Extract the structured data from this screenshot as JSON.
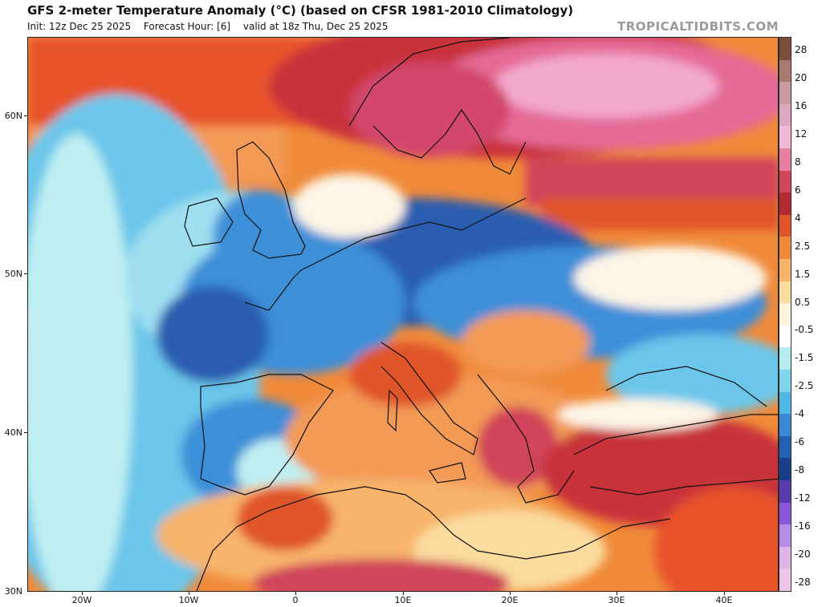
{
  "header": {
    "title": "GFS 2-meter Temperature Anomaly (°C) (based on CFSR 1981-2010 Climatology)",
    "init": "Init: 12z Dec 25 2025",
    "forecast_hour": "Forecast Hour: [6]",
    "valid": "valid at 18z Thu, Dec 25 2025",
    "brand": "TROPICALTIDBITS.COM"
  },
  "axes": {
    "lat_labels": [
      "60N",
      "50N",
      "40N",
      "30N"
    ],
    "lon_labels": [
      "20W",
      "10W",
      "0",
      "10E",
      "20E",
      "30E",
      "40E"
    ]
  },
  "colorbar": {
    "labels": [
      "28",
      "20",
      "16",
      "12",
      "8",
      "6",
      "4",
      "2.5",
      "1.5",
      "0.5",
      "-0.5",
      "-1.5",
      "-2.5",
      "-4",
      "-6",
      "-8",
      "-12",
      "-16",
      "-20",
      "-28"
    ],
    "colors": [
      "#7a4e3a",
      "#a87a6e",
      "#c99aa0",
      "#e0a7c0",
      "#f3b7d8",
      "#e87fa0",
      "#d0455a",
      "#b52a32",
      "#e0542a",
      "#f08a3a",
      "#f7b46a",
      "#fbdc9e",
      "#fdf3d8",
      "#ffffff",
      "#b4ecf0",
      "#7fd6ea",
      "#52b6e6",
      "#3b88d6",
      "#255fb2",
      "#1a3f8a",
      "#5b3ab0",
      "#8a55d6",
      "#b78ce6",
      "#e3b3e6",
      "#f0c6e8"
    ]
  },
  "map_regions": {
    "land_label": "",
    "colors": {
      "warm_dark": "#c8333a",
      "warm": "#e5592e",
      "warm_light": "#f39a56",
      "warm_pale": "#fbd39a",
      "neutral": "#fdf5e6",
      "cool_pale": "#bfeff2",
      "cool": "#6cc6ea",
      "cool_mid": "#3e8fd8",
      "cool_dark": "#2a5db0",
      "pink": "#e56a96",
      "pink_light": "#f3a9cc",
      "coast": "#111111"
    }
  }
}
